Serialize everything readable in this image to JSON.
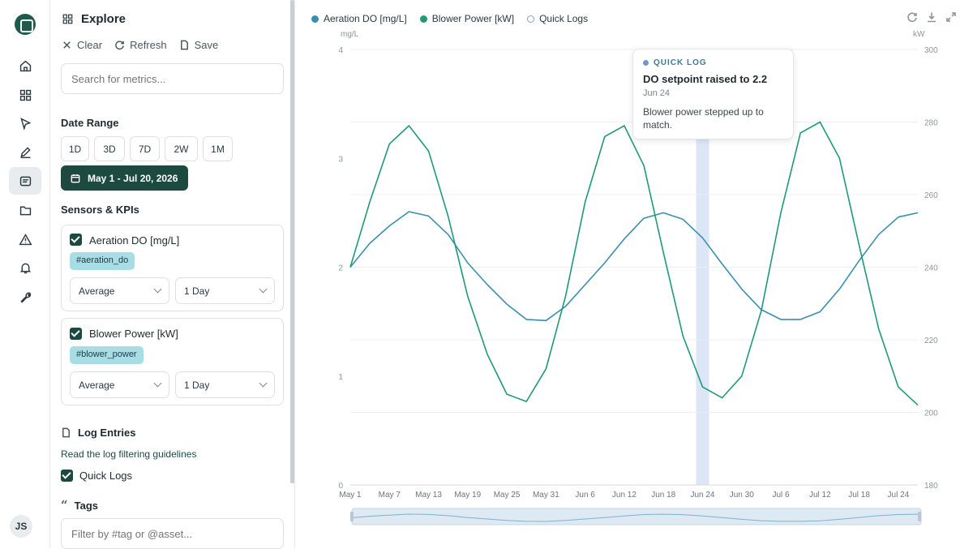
{
  "sidebar": {
    "user_initials": "JS",
    "active_item": "explore"
  },
  "panel": {
    "title": "Explore",
    "toolbar": {
      "clear": "Clear",
      "refresh": "Refresh",
      "save": "Save"
    },
    "search_placeholder": "Search for metrics...",
    "date_range_label": "Date Range",
    "ranges": [
      "1D",
      "3D",
      "7D",
      "2W",
      "1M"
    ],
    "date_value": "May 1 - Jul 20, 2026",
    "sensors_label": "Sensors & KPIs",
    "sensors": [
      {
        "label": "Aeration DO [mg/L]",
        "tag": "#aeration_do",
        "agg": "Average",
        "interval": "1 Day",
        "checked": true
      },
      {
        "label": "Blower Power [kW]",
        "tag": "#blower_power",
        "agg": "Average",
        "interval": "1 Day",
        "checked": true
      }
    ],
    "log_entries_label": "Log Entries",
    "guidelines_link": "Read the log filtering guidelines",
    "quick_logs_label": "Quick Logs",
    "tags_label": "Tags",
    "tag_filter_placeholder": "Filter by #tag or @asset..."
  },
  "legend": {
    "do_label": "Aeration DO [mg/L]",
    "power_label": "Blower Power [kW]",
    "logs_label": "Quick Logs"
  },
  "tooltip": {
    "kicker": "QUICK LOG",
    "title": "DO setpoint raised to 2.2",
    "date": "Jun 24",
    "body": "Blower power stepped up to match."
  },
  "chart_data": {
    "type": "line",
    "x": [
      "May 1",
      "May 4",
      "May 7",
      "May 10",
      "May 13",
      "May 16",
      "May 19",
      "May 22",
      "May 25",
      "May 28",
      "May 31",
      "Jun 3",
      "Jun 6",
      "Jun 9",
      "Jun 12",
      "Jun 15",
      "Jun 18",
      "Jun 21",
      "Jun 24",
      "Jun 27",
      "Jun 30",
      "Jul 3",
      "Jul 6",
      "Jul 9",
      "Jul 12",
      "Jul 15",
      "Jul 18",
      "Jul 21",
      "Jul 24",
      "Jul 26"
    ],
    "x_ticks": [
      "May 1",
      "May 7",
      "May 13",
      "May 19",
      "May 25",
      "May 31",
      "Jun 6",
      "Jun 12",
      "Jun 18",
      "Jun 24",
      "Jun 30",
      "Jul 6",
      "Jul 12",
      "Jul 18",
      "Jul 24"
    ],
    "series": [
      {
        "name": "Aeration DO [mg/L]",
        "axis": "left",
        "color": "#3a8fb0",
        "values": [
          2.0,
          2.22,
          2.38,
          2.51,
          2.47,
          2.3,
          2.04,
          1.84,
          1.66,
          1.52,
          1.51,
          1.64,
          1.84,
          2.04,
          2.26,
          2.45,
          2.5,
          2.44,
          2.27,
          2.03,
          1.8,
          1.61,
          1.52,
          1.52,
          1.59,
          1.8,
          2.06,
          2.3,
          2.46,
          2.5
        ]
      },
      {
        "name": "Blower Power [kW]",
        "axis": "right",
        "color": "#1e9a76",
        "values": [
          240,
          258,
          274,
          279,
          272,
          254,
          232,
          216,
          205,
          203,
          212,
          232,
          258,
          276,
          279,
          268,
          244,
          221,
          207,
          204,
          210,
          228,
          255,
          277,
          280,
          270,
          246,
          223,
          207,
          202
        ]
      }
    ],
    "y_left": {
      "label": "mg/L",
      "range": [
        0,
        4
      ],
      "ticks": [
        0,
        1,
        2,
        3,
        4
      ]
    },
    "y_right": {
      "label": "kW",
      "range": [
        180,
        300
      ],
      "ticks": [
        180,
        200,
        220,
        240,
        260,
        280,
        300
      ]
    },
    "highlight": "Jun 24",
    "grid": true
  }
}
